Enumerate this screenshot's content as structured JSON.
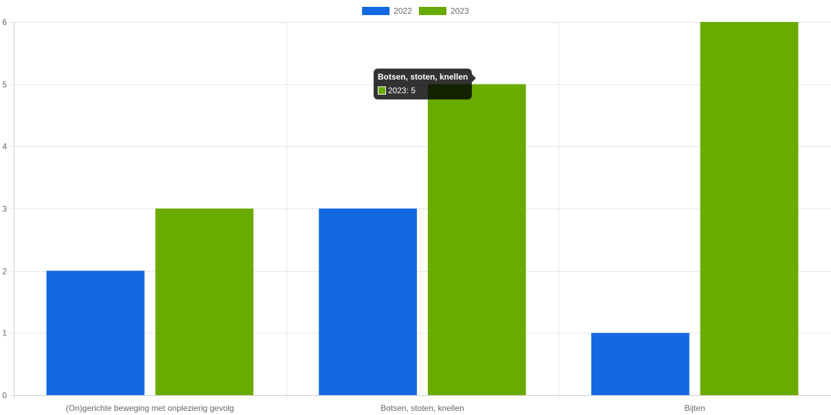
{
  "chart_data": {
    "type": "bar",
    "title": "",
    "xlabel": "",
    "ylabel": "",
    "categories": [
      "(On)gerichte beweging met onplezierig gevolg",
      "Botsen, stoten, knellen",
      "Bijten"
    ],
    "series": [
      {
        "name": "2022",
        "values": [
          2,
          3,
          1
        ],
        "color": "#1469e3"
      },
      {
        "name": "2023",
        "values": [
          3,
          5,
          6
        ],
        "color": "#6aab00"
      }
    ],
    "ylim": [
      0,
      6
    ],
    "yticks": [
      "0",
      "1",
      "2",
      "3",
      "4",
      "5",
      "6"
    ],
    "grid": true,
    "legend": "top-center"
  },
  "tooltip": {
    "title": "Botsen, stoten, knellen",
    "series": "2023",
    "value": "5",
    "text": "2023: 5",
    "swatch_color": "#6aab00"
  }
}
